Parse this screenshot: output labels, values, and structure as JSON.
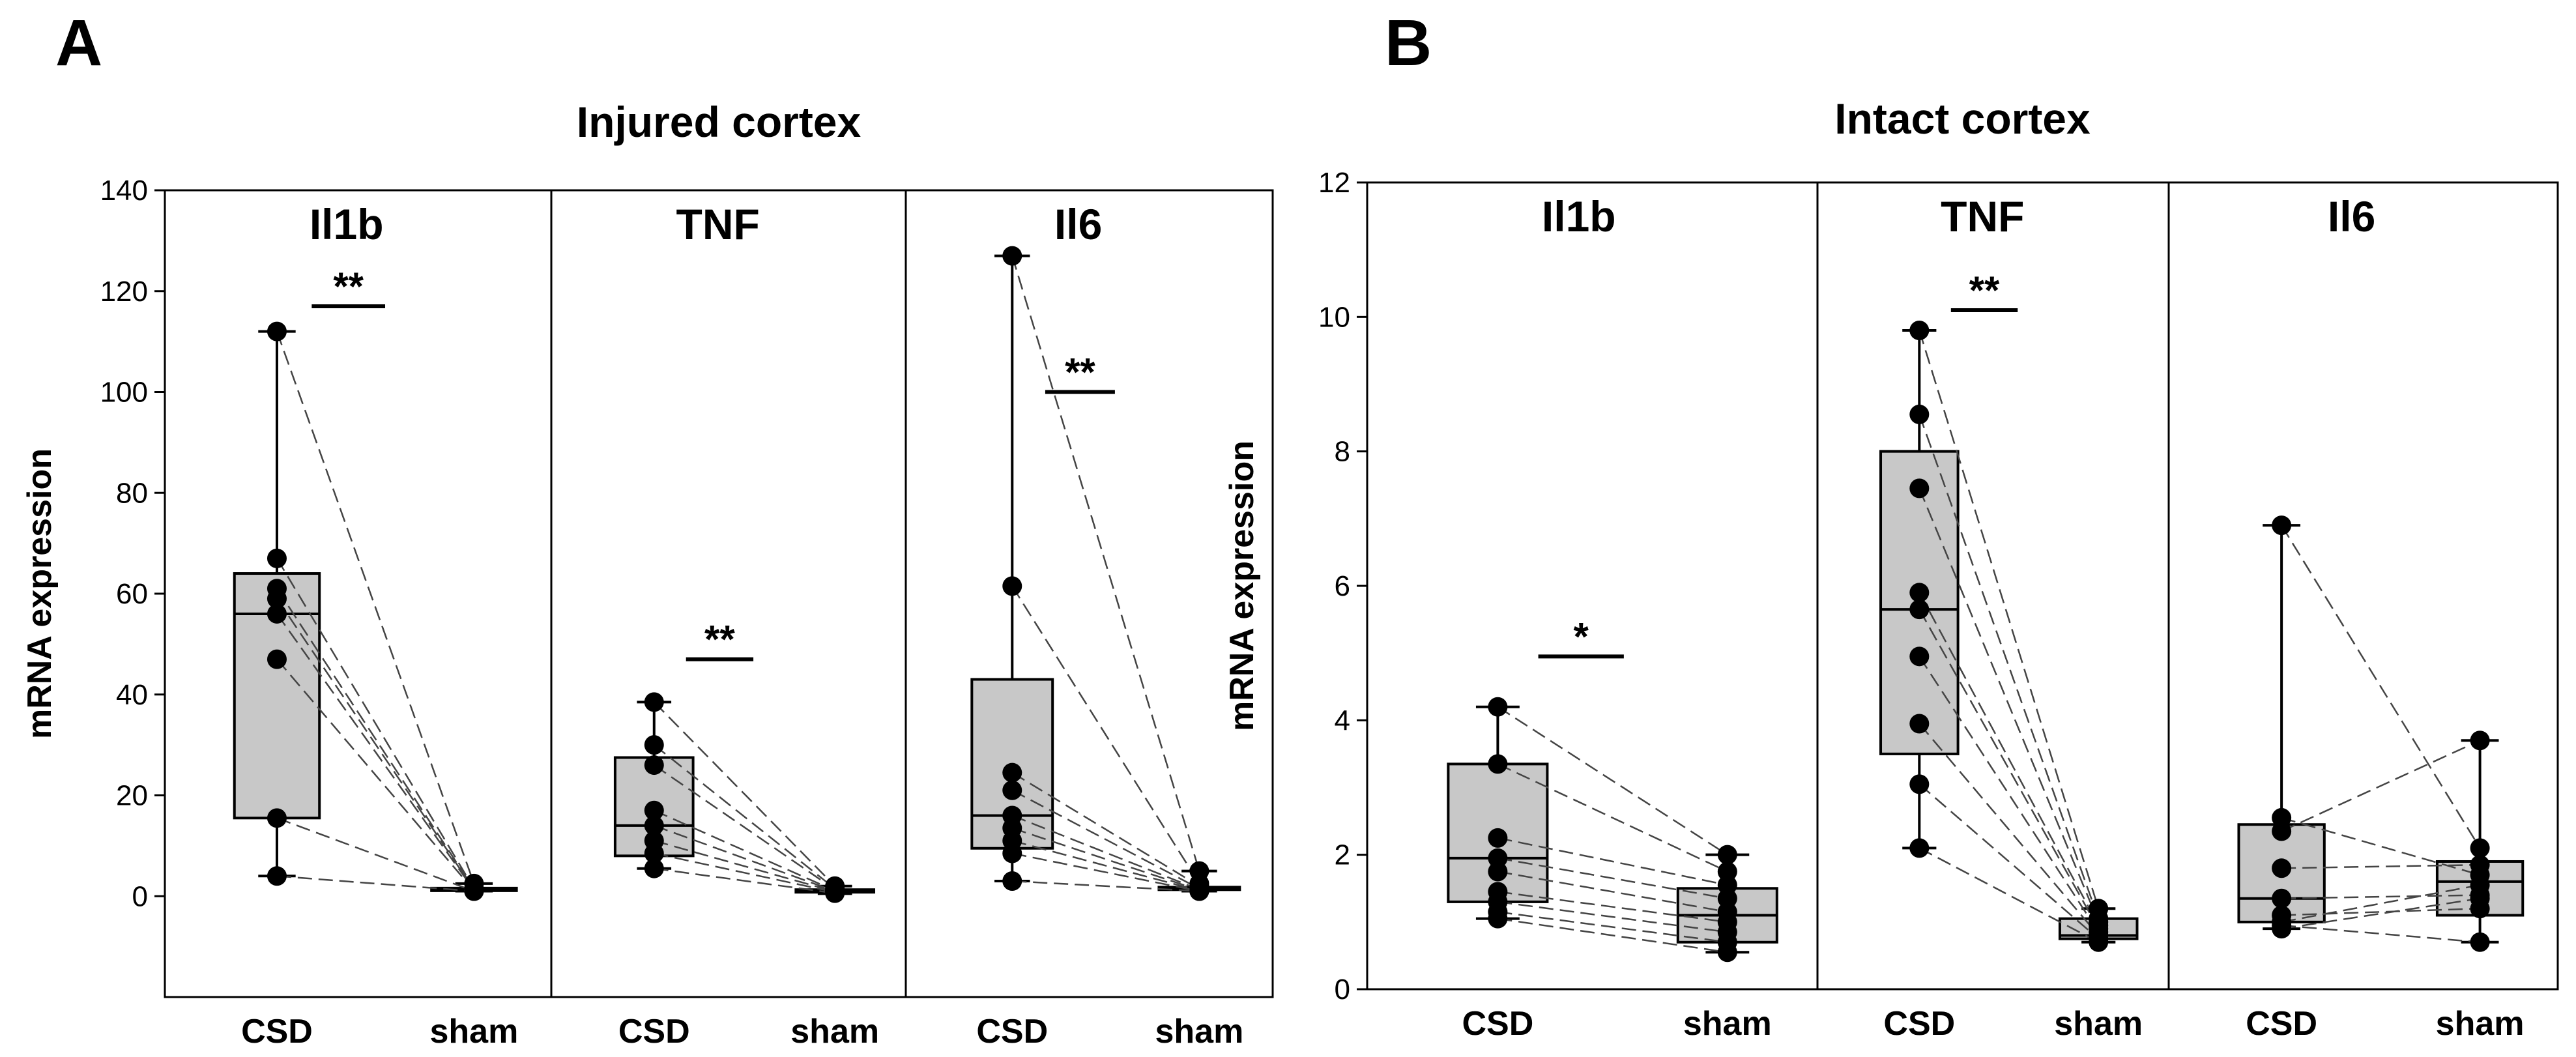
{
  "chart_data": [
    {
      "panel": "A",
      "type": "box",
      "title": "Injured cortex",
      "ylabel": "mRNA expression",
      "ylim": [
        -20,
        140
      ],
      "yticks": [
        0,
        20,
        40,
        60,
        80,
        100,
        120,
        140
      ],
      "groups": [
        "CSD",
        "sham"
      ],
      "genes": [
        {
          "name": "Il1b",
          "significance": "**",
          "sig_y": 117,
          "boxes": [
            {
              "group": "CSD",
              "min": 4,
              "q1": 15.5,
              "median": 56,
              "q3": 64,
              "max": 112
            },
            {
              "group": "sham",
              "min": 1,
              "q1": 1.2,
              "median": 1.4,
              "q3": 1.6,
              "max": 2.5
            }
          ],
          "pairs": [
            [
              112,
              2.5
            ],
            [
              67,
              1.5
            ],
            [
              61,
              1.4
            ],
            [
              59,
              1.3
            ],
            [
              56,
              1.2
            ],
            [
              47,
              1.1
            ],
            [
              15.5,
              1.0
            ],
            [
              4,
              1.0
            ]
          ]
        },
        {
          "name": "TNF",
          "significance": "**",
          "sig_y": 47,
          "boxes": [
            {
              "group": "CSD",
              "min": 5.5,
              "q1": 8,
              "median": 14,
              "q3": 27.5,
              "max": 38.5
            },
            {
              "group": "sham",
              "min": 0.5,
              "q1": 0.8,
              "median": 1.0,
              "q3": 1.3,
              "max": 2
            }
          ],
          "pairs": [
            [
              38.5,
              2
            ],
            [
              30,
              1.5
            ],
            [
              26,
              1.3
            ],
            [
              17,
              1.1
            ],
            [
              14,
              1.0
            ],
            [
              11,
              0.9
            ],
            [
              8.5,
              0.8
            ],
            [
              5.5,
              0.6
            ]
          ]
        },
        {
          "name": "Il6",
          "significance": "**",
          "sig_y": 100,
          "boxes": [
            {
              "group": "CSD",
              "min": 3,
              "q1": 9.5,
              "median": 16,
              "q3": 43,
              "max": 127
            },
            {
              "group": "sham",
              "min": 1,
              "q1": 1.3,
              "median": 1.5,
              "q3": 1.8,
              "max": 5
            }
          ],
          "pairs": [
            [
              127,
              5
            ],
            [
              61.5,
              2.5
            ],
            [
              24.5,
              2
            ],
            [
              21,
              1.5
            ],
            [
              16,
              1.3
            ],
            [
              13.5,
              1.2
            ],
            [
              11,
              1.1
            ],
            [
              8.5,
              1.0
            ],
            [
              3,
              1.0
            ]
          ]
        }
      ]
    },
    {
      "panel": "B",
      "type": "box",
      "title": "Intact cortex",
      "ylabel": "mRNA expression",
      "ylim": [
        0,
        12
      ],
      "yticks": [
        0,
        2,
        4,
        6,
        8,
        10,
        12
      ],
      "groups": [
        "CSD",
        "sham"
      ],
      "genes": [
        {
          "name": "Il1b",
          "significance": "*",
          "sig_y": 4.95,
          "boxes": [
            {
              "group": "CSD",
              "min": 1.05,
              "q1": 1.3,
              "median": 1.95,
              "q3": 3.35,
              "max": 4.2
            },
            {
              "group": "sham",
              "min": 0.55,
              "q1": 0.7,
              "median": 1.1,
              "q3": 1.5,
              "max": 2.0
            }
          ],
          "pairs": [
            [
              4.2,
              2.0
            ],
            [
              3.35,
              1.75
            ],
            [
              2.25,
              1.55
            ],
            [
              1.95,
              1.35
            ],
            [
              1.75,
              1.15
            ],
            [
              1.45,
              1.0
            ],
            [
              1.3,
              0.85
            ],
            [
              1.15,
              0.7
            ],
            [
              1.05,
              0.55
            ]
          ]
        },
        {
          "name": "TNF",
          "significance": "**",
          "sig_y": 10.1,
          "boxes": [
            {
              "group": "CSD",
              "min": 2.1,
              "q1": 3.5,
              "median": 5.65,
              "q3": 8.0,
              "max": 9.8
            },
            {
              "group": "sham",
              "min": 0.7,
              "q1": 0.75,
              "median": 0.8,
              "q3": 1.05,
              "max": 1.2
            }
          ],
          "pairs": [
            [
              9.8,
              1.2
            ],
            [
              8.55,
              1.05
            ],
            [
              7.45,
              1.0
            ],
            [
              5.9,
              0.95
            ],
            [
              5.65,
              0.9
            ],
            [
              4.95,
              0.85
            ],
            [
              3.95,
              0.8
            ],
            [
              3.05,
              0.75
            ],
            [
              2.1,
              0.7
            ]
          ]
        },
        {
          "name": "Il6",
          "significance": "",
          "sig_y": null,
          "boxes": [
            {
              "group": "CSD",
              "min": 0.9,
              "q1": 1.0,
              "median": 1.35,
              "q3": 2.45,
              "max": 6.9
            },
            {
              "group": "sham",
              "min": 0.7,
              "q1": 1.1,
              "median": 1.6,
              "q3": 1.9,
              "max": 3.7
            }
          ],
          "pairs": [
            [
              6.9,
              2.1
            ],
            [
              2.55,
              1.7
            ],
            [
              2.35,
              3.7
            ],
            [
              1.8,
              1.85
            ],
            [
              1.35,
              1.4
            ],
            [
              1.1,
              1.2
            ],
            [
              1.0,
              1.55
            ],
            [
              0.95,
              0.7
            ],
            [
              0.9,
              1.35
            ]
          ]
        }
      ]
    }
  ]
}
